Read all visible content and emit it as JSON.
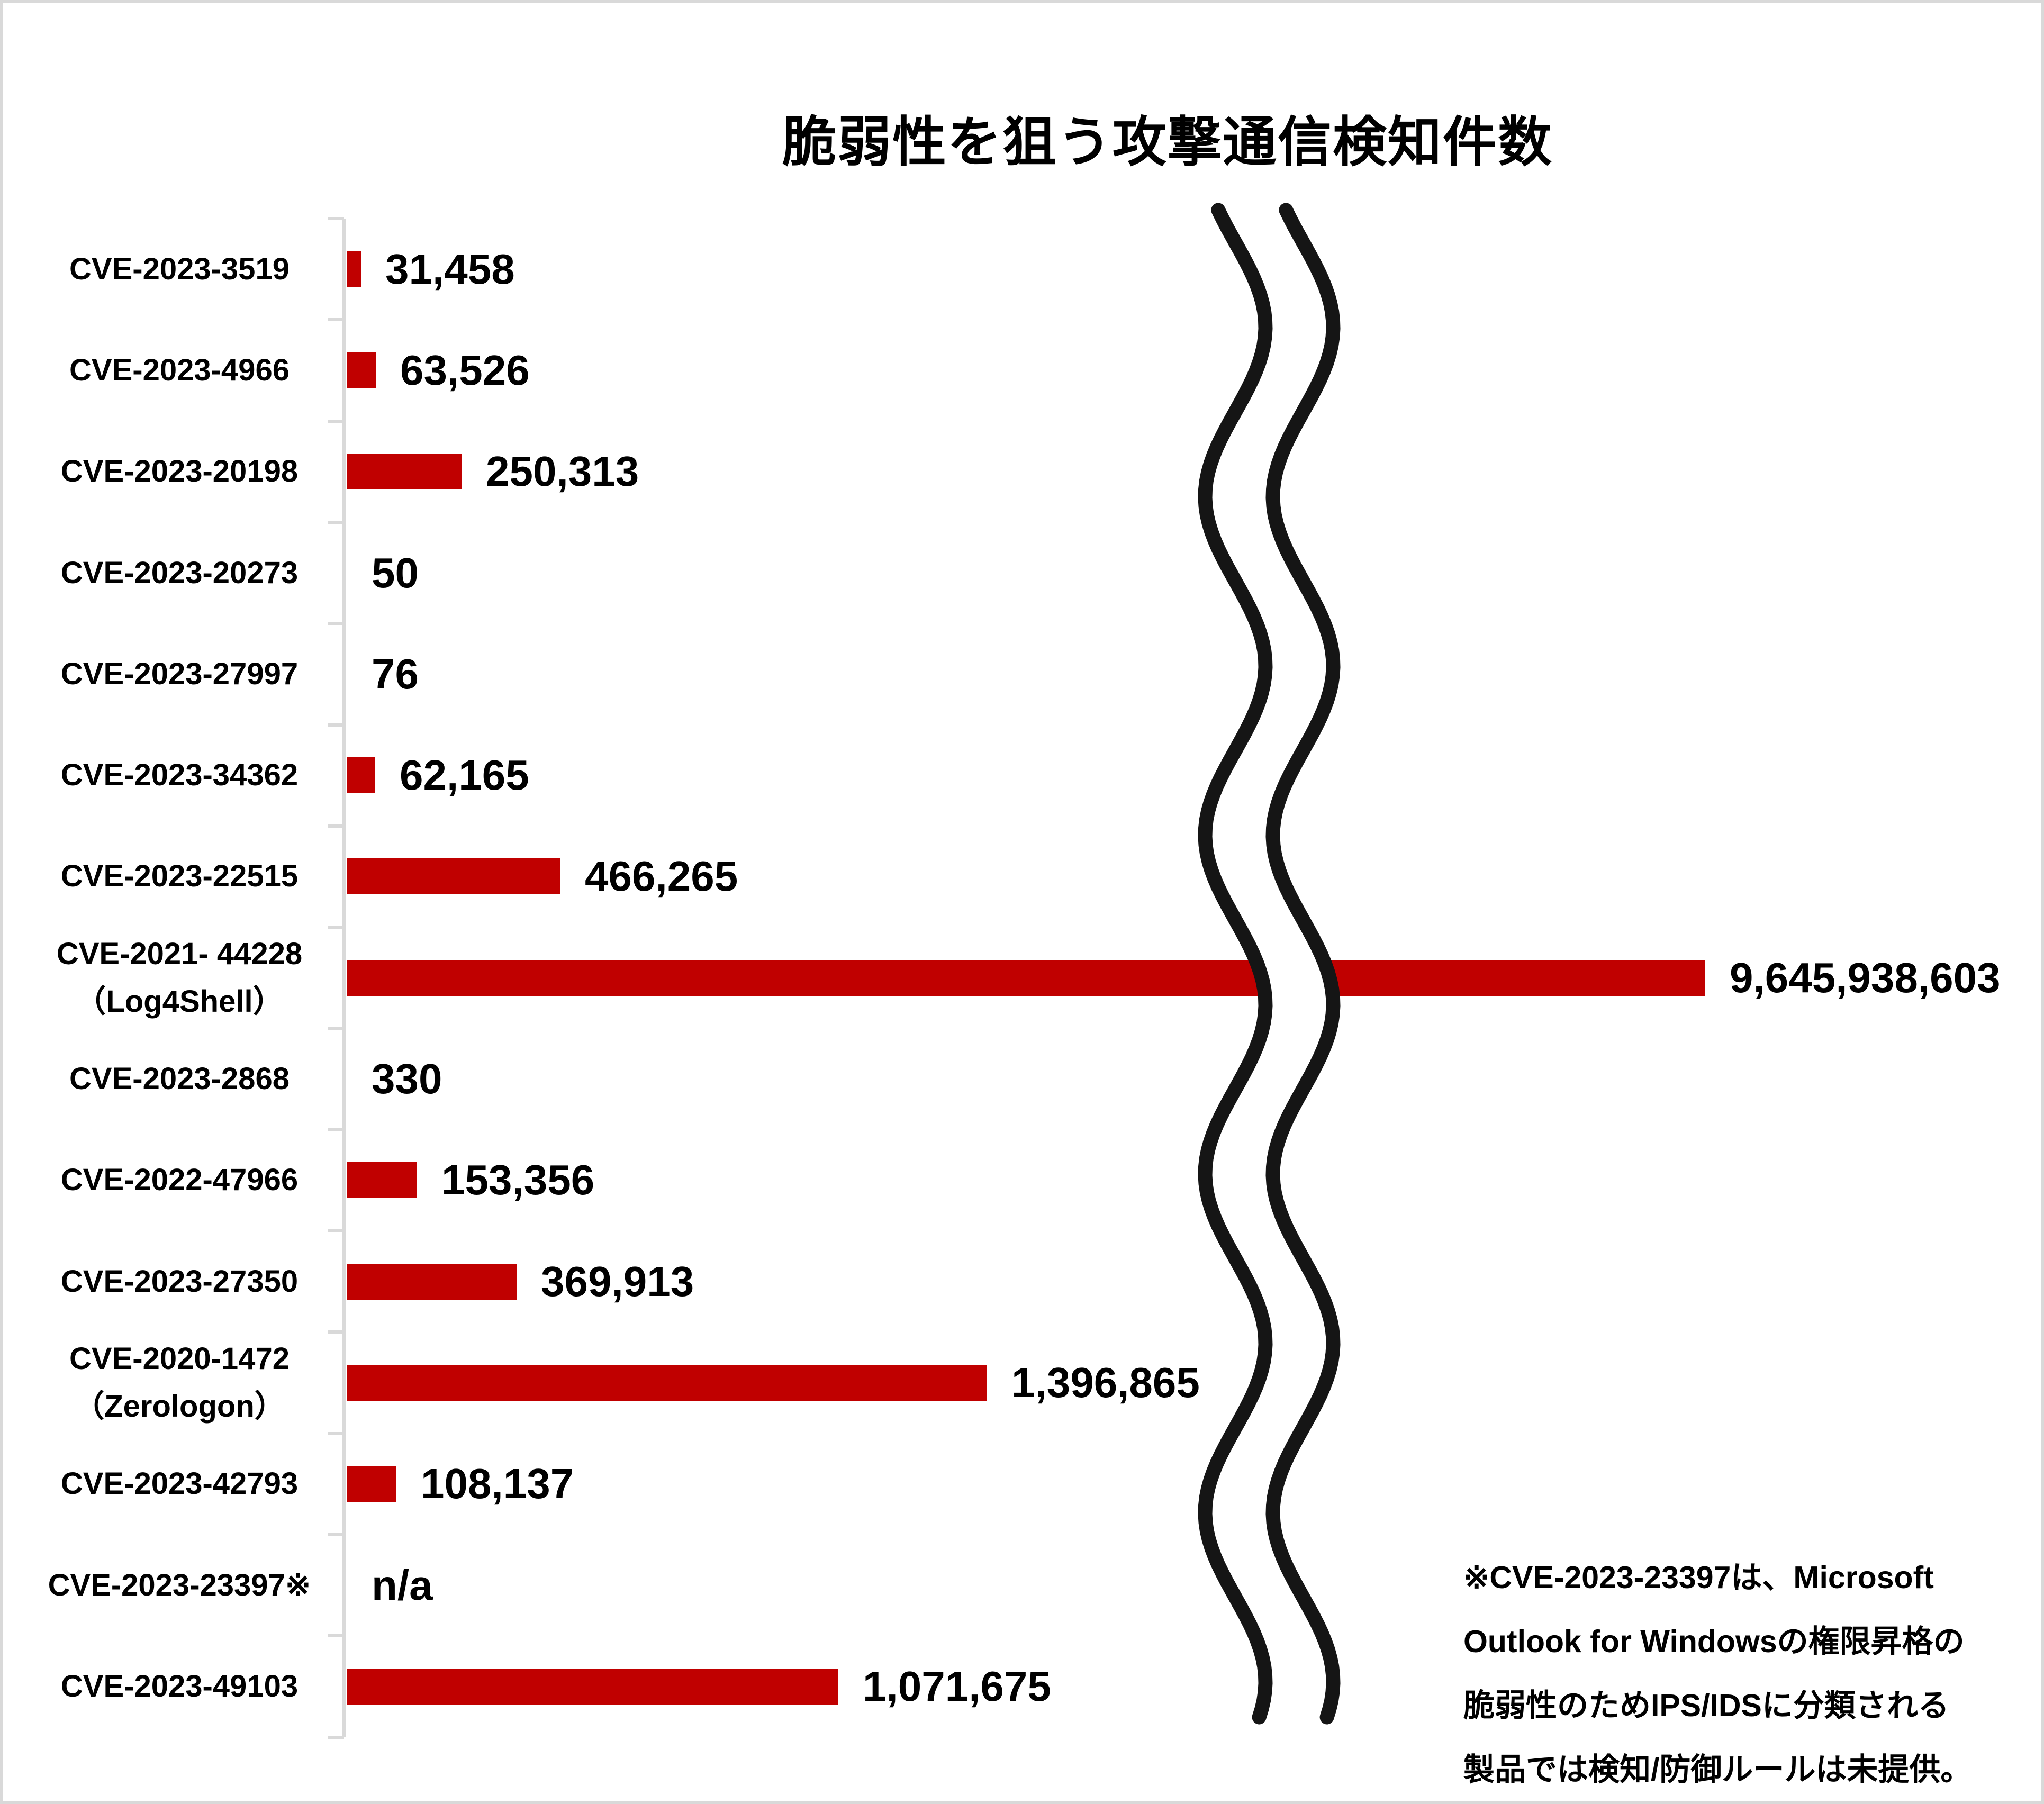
{
  "title": "脆弱性を狙う攻撃通信検知件数",
  "colors": {
    "bar": "#c00000",
    "axis": "#d9d9d9",
    "text": "#000000",
    "break_line": "#151515"
  },
  "chart_data": {
    "type": "bar",
    "orientation": "horizontal",
    "title": "脆弱性を狙う攻撃通信検知件数",
    "xlabel": "",
    "ylabel": "",
    "grid": false,
    "legend": false,
    "bar_color": "#c00000",
    "axis_color": "#d9d9d9",
    "axis_break": {
      "present": true,
      "style": "double-vertical-squiggle",
      "through_category": "CVE-2021- 44228（Log4Shell）"
    },
    "categories": [
      {
        "label": "CVE-2023-3519",
        "label2": "",
        "value": 31458,
        "value_label": "31,458"
      },
      {
        "label": "CVE-2023-4966",
        "label2": "",
        "value": 63526,
        "value_label": "63,526"
      },
      {
        "label": "CVE-2023-20198",
        "label2": "",
        "value": 250313,
        "value_label": "250,313"
      },
      {
        "label": "CVE-2023-20273",
        "label2": "",
        "value": 50,
        "value_label": "50"
      },
      {
        "label": "CVE-2023-27997",
        "label2": "",
        "value": 76,
        "value_label": "76"
      },
      {
        "label": "CVE-2023-34362",
        "label2": "",
        "value": 62165,
        "value_label": "62,165"
      },
      {
        "label": "CVE-2023-22515",
        "label2": "",
        "value": 466265,
        "value_label": "466,265"
      },
      {
        "label": "CVE-2021- 44228",
        "label2": "（Log4Shell）",
        "value": 9645938603,
        "value_label": "9,645,938,603"
      },
      {
        "label": "CVE-2023-2868",
        "label2": "",
        "value": 330,
        "value_label": "330"
      },
      {
        "label": "CVE-2022-47966",
        "label2": "",
        "value": 153356,
        "value_label": "153,356"
      },
      {
        "label": "CVE-2023-27350",
        "label2": "",
        "value": 369913,
        "value_label": "369,913"
      },
      {
        "label": "CVE-2020-1472",
        "label2": "（Zerologon）",
        "value": 1396865,
        "value_label": "1,396,865"
      },
      {
        "label": "CVE-2023-42793",
        "label2": "",
        "value": 108137,
        "value_label": "108,137"
      },
      {
        "label": "CVE-2023-23397※",
        "label2": "",
        "value": null,
        "value_label": "n/a"
      },
      {
        "label": "CVE-2023-49103",
        "label2": "",
        "value": 1071675,
        "value_label": "1,071,675"
      }
    ]
  },
  "footnote": {
    "lines": [
      "※CVE-2023-23397は、Microsoft",
      "Outlook for Windowsの権限昇格の",
      "脆弱性のためIPS/IDSに分類される",
      "製品では検知/防御ルールは未提供。"
    ]
  }
}
